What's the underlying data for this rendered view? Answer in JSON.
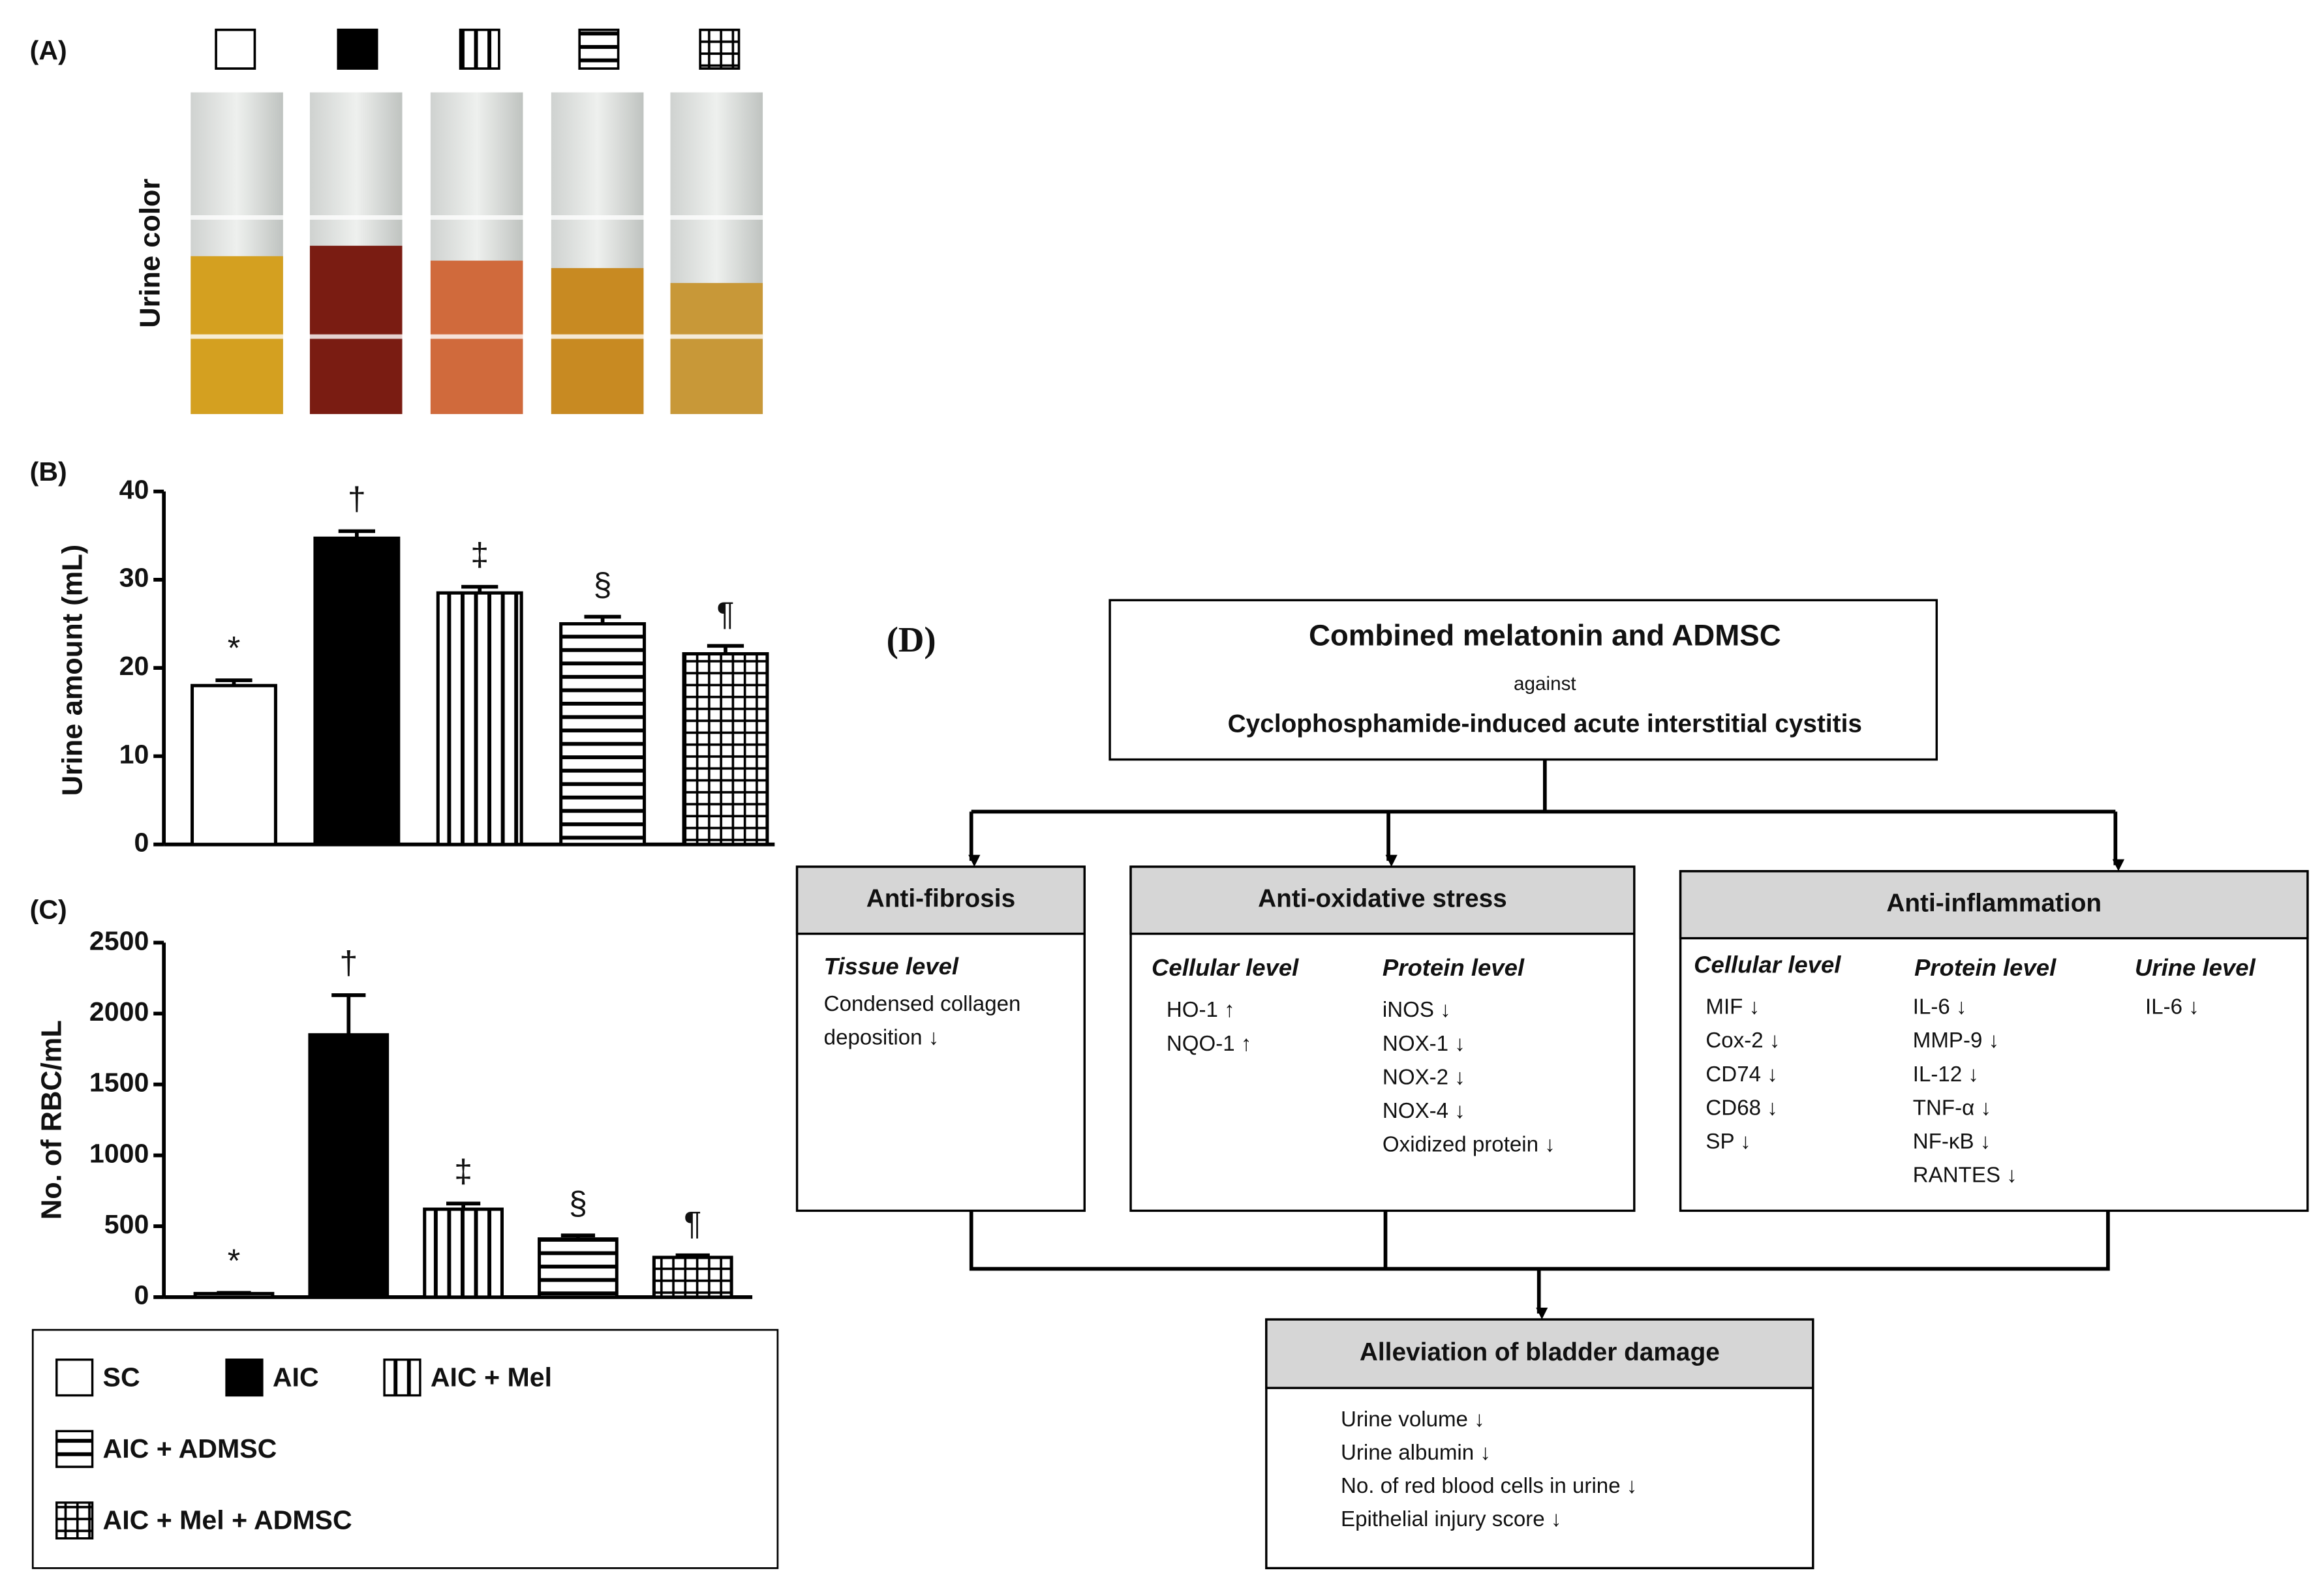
{
  "panel_a": {
    "label": "(A)",
    "ylabel": "Urine color"
  },
  "legend": {
    "entries": [
      "SC",
      "AIC",
      "AIC + Mel",
      "AIC + ADMSC",
      "AIC + Mel + ADMSC"
    ],
    "patterns": [
      "empty",
      "solid",
      "vertical",
      "horizontal",
      "grid"
    ]
  },
  "chart_data": [
    {
      "type": "bar",
      "label": "(B)",
      "ylabel": "Urine amount (mL)",
      "values": [
        18,
        34.7,
        28.5,
        25,
        21.6
      ],
      "errors": [
        0.6,
        0.8,
        0.7,
        0.8,
        0.9
      ],
      "markers": [
        "*",
        "†",
        "‡",
        "§",
        "¶"
      ],
      "ylim": [
        0,
        40
      ],
      "yticks": [
        0,
        10,
        20,
        30,
        40
      ]
    },
    {
      "type": "bar",
      "label": "(C)",
      "ylabel": "No. of RBC/mL",
      "values": [
        25,
        1850,
        620,
        410,
        280
      ],
      "errors": [
        5,
        280,
        40,
        25,
        15
      ],
      "markers": [
        "*",
        "†",
        "‡",
        "§",
        "¶"
      ],
      "ylim": [
        0,
        2500
      ],
      "yticks": [
        0,
        500,
        1000,
        1500,
        2000,
        2500
      ]
    }
  ],
  "diagram": {
    "label": "(D)",
    "top": {
      "title": "Combined melatonin and ADMSC",
      "middle": "against",
      "subtitle": "Cyclophosphamide-induced acute interstitial cystitis"
    },
    "boxes": [
      {
        "title": "Anti-fibrosis",
        "columns": [
          {
            "heading": "Tissue level",
            "items": [
              "Condensed collagen",
              "deposition ↓"
            ]
          }
        ]
      },
      {
        "title": "Anti-oxidative stress",
        "columns": [
          {
            "heading": "Cellular level",
            "items": [
              "HO-1 ↑",
              "NQO-1 ↑"
            ]
          },
          {
            "heading": "Protein level",
            "items": [
              "iNOS ↓",
              "NOX-1 ↓",
              "NOX-2 ↓",
              "NOX-4 ↓",
              "Oxidized protein ↓"
            ]
          }
        ]
      },
      {
        "title": "Anti-inflammation",
        "columns": [
          {
            "heading": "Cellular level",
            "items": [
              "MIF ↓",
              "Cox-2 ↓",
              "CD74 ↓",
              "CD68 ↓",
              "SP ↓"
            ]
          },
          {
            "heading": "Protein level",
            "items": [
              "IL-6 ↓",
              "MMP-9 ↓",
              "IL-12 ↓",
              "TNF-α ↓",
              "NF-κB ↓",
              "RANTES ↓"
            ]
          },
          {
            "heading": "Urine level",
            "items": [
              "IL-6 ↓"
            ]
          }
        ]
      }
    ],
    "outcome": {
      "title": "Alleviation of bladder damage",
      "items": [
        "Urine volume  ↓",
        "Urine albumin ↓",
        "No. of red blood cells in urine ↓",
        "Epithelial injury score ↓"
      ]
    }
  }
}
